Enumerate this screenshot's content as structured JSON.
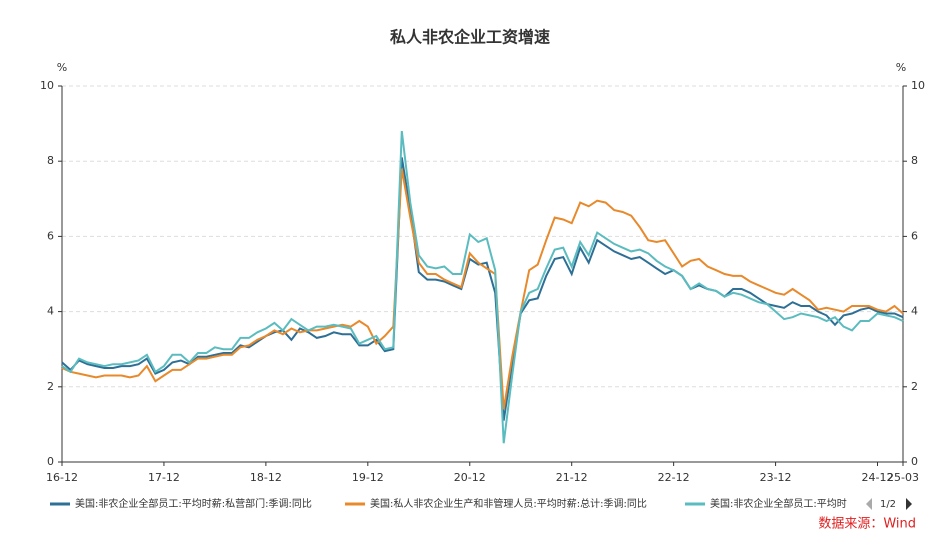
{
  "chart_data": {
    "type": "line",
    "title": "私人非农企业工资增速",
    "y_label": "%",
    "y2_label": "%",
    "categories": [
      "16-12",
      null,
      null,
      null,
      null,
      null,
      null,
      null,
      null,
      null,
      null,
      null,
      "17-12",
      null,
      null,
      null,
      null,
      null,
      null,
      null,
      null,
      null,
      null,
      null,
      "18-12",
      null,
      null,
      null,
      null,
      null,
      null,
      null,
      null,
      null,
      null,
      null,
      "19-12",
      null,
      null,
      null,
      null,
      null,
      null,
      null,
      null,
      null,
      null,
      null,
      "20-12",
      null,
      null,
      null,
      null,
      null,
      null,
      null,
      null,
      null,
      null,
      null,
      "21-12",
      null,
      null,
      null,
      null,
      null,
      null,
      null,
      null,
      null,
      null,
      null,
      "22-12",
      null,
      null,
      null,
      null,
      null,
      null,
      null,
      null,
      null,
      null,
      null,
      "23-12",
      null,
      null,
      null,
      null,
      null,
      null,
      null,
      null,
      null,
      null,
      null,
      "24-12",
      null,
      null,
      "25-03"
    ],
    "series": [
      {
        "name": "美国:非农企业全部员工:平均时薪:私营部门:季调:同比",
        "color": "#2e6f96",
        "values": [
          2.65,
          2.45,
          2.7,
          2.6,
          2.55,
          2.5,
          2.5,
          2.55,
          2.55,
          2.6,
          2.75,
          2.35,
          2.45,
          2.65,
          2.7,
          2.6,
          2.8,
          2.8,
          2.85,
          2.9,
          2.9,
          3.1,
          3.05,
          3.2,
          3.35,
          3.45,
          3.5,
          3.25,
          3.55,
          3.45,
          3.3,
          3.35,
          3.45,
          3.4,
          3.4,
          3.1,
          3.1,
          3.25,
          2.95,
          3.0,
          8.1,
          6.7,
          5.05,
          4.85,
          4.85,
          4.8,
          4.7,
          4.6,
          5.4,
          5.25,
          5.3,
          4.5,
          1.1,
          2.6,
          3.95,
          4.3,
          4.35,
          4.95,
          5.4,
          5.45,
          5.0,
          5.7,
          5.3,
          5.9,
          5.75,
          5.6,
          5.5,
          5.4,
          5.45,
          5.3,
          5.15,
          5.0,
          5.1,
          4.95,
          4.6,
          4.7,
          4.6,
          4.55,
          4.4,
          4.6,
          4.6,
          4.5,
          4.35,
          4.2,
          4.15,
          4.1,
          4.25,
          4.15,
          4.15,
          4.0,
          3.9,
          3.65,
          3.9,
          3.95,
          4.05,
          4.1,
          4.0,
          3.95,
          3.95,
          3.85
        ]
      },
      {
        "name": "美国:私人非农企业生产和非管理人员:平均时薪:总计:季调:同比",
        "color": "#e8892b",
        "values": [
          2.5,
          2.4,
          2.35,
          2.3,
          2.25,
          2.3,
          2.3,
          2.3,
          2.25,
          2.3,
          2.55,
          2.15,
          2.3,
          2.45,
          2.45,
          2.6,
          2.75,
          2.75,
          2.8,
          2.85,
          2.85,
          3.05,
          3.1,
          3.25,
          3.35,
          3.5,
          3.4,
          3.55,
          3.45,
          3.5,
          3.5,
          3.55,
          3.6,
          3.65,
          3.6,
          3.75,
          3.6,
          3.15,
          3.35,
          3.6,
          7.8,
          6.5,
          5.3,
          5.0,
          5.0,
          4.85,
          4.75,
          4.65,
          5.55,
          5.3,
          5.15,
          5.0,
          1.4,
          2.8,
          4.0,
          5.1,
          5.25,
          5.9,
          6.5,
          6.45,
          6.35,
          6.9,
          6.8,
          6.95,
          6.9,
          6.7,
          6.65,
          6.55,
          6.25,
          5.9,
          5.85,
          5.9,
          5.55,
          5.2,
          5.35,
          5.4,
          5.2,
          5.1,
          5.0,
          4.95,
          4.95,
          4.8,
          4.7,
          4.6,
          4.5,
          4.45,
          4.6,
          4.45,
          4.3,
          4.05,
          4.1,
          4.05,
          4.0,
          4.15,
          4.15,
          4.15,
          4.05,
          4.0,
          4.15,
          3.95
        ]
      },
      {
        "name": "美国:非农企业全部员工:平均时",
        "color": "#5bbcbf",
        "values": [
          2.55,
          2.4,
          2.75,
          2.65,
          2.6,
          2.55,
          2.6,
          2.6,
          2.65,
          2.7,
          2.85,
          2.4,
          2.55,
          2.85,
          2.85,
          2.65,
          2.9,
          2.9,
          3.05,
          3.0,
          3.0,
          3.3,
          3.3,
          3.45,
          3.55,
          3.7,
          3.5,
          3.8,
          3.65,
          3.5,
          3.6,
          3.6,
          3.65,
          3.6,
          3.55,
          3.15,
          3.25,
          3.35,
          3.0,
          3.05,
          8.8,
          6.9,
          5.5,
          5.2,
          5.15,
          5.2,
          5.0,
          5.0,
          6.05,
          5.85,
          5.95,
          5.1,
          0.5,
          2.3,
          4.0,
          4.5,
          4.6,
          5.15,
          5.65,
          5.7,
          5.2,
          5.85,
          5.5,
          6.1,
          5.95,
          5.8,
          5.7,
          5.6,
          5.65,
          5.55,
          5.35,
          5.2,
          5.1,
          4.95,
          4.6,
          4.75,
          4.6,
          4.55,
          4.4,
          4.5,
          4.45,
          4.35,
          4.25,
          4.2,
          4.0,
          3.8,
          3.85,
          3.95,
          3.9,
          3.85,
          3.75,
          3.85,
          3.6,
          3.5,
          3.75,
          3.75,
          3.95,
          3.9,
          3.85,
          3.75
        ]
      }
    ],
    "ylim": [
      0,
      10
    ],
    "yticks": [
      0,
      2,
      4,
      6,
      8,
      10
    ],
    "y2lim": [
      0,
      10
    ],
    "y2ticks": [
      0,
      2,
      4,
      6,
      8,
      10
    ],
    "grid": true,
    "legend_page": "1/2",
    "source": "数据来源：Wind"
  }
}
